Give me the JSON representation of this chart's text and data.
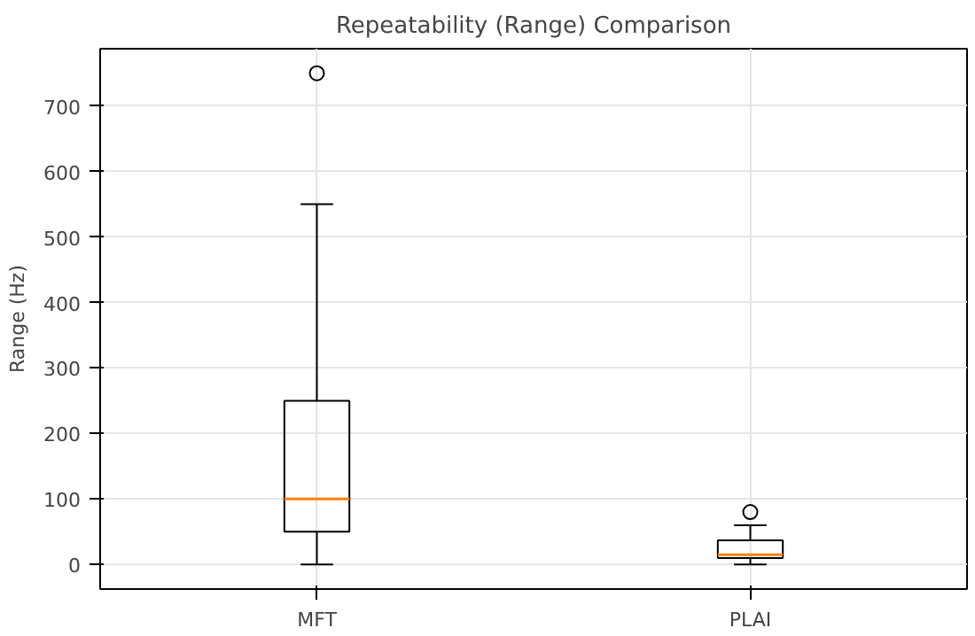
{
  "chart_data": {
    "type": "box",
    "title": "Repeatability (Range) Comparison",
    "ylabel": "Range (Hz)",
    "categories": [
      "MFT",
      "PLAI"
    ],
    "boxes": [
      {
        "low": 0,
        "q1": 50,
        "median": 100,
        "q3": 250,
        "high": 550,
        "outliers": [
          750
        ]
      },
      {
        "low": 0,
        "q1": 10,
        "median": 15,
        "q3": 37,
        "high": 60,
        "outliers": [
          80
        ]
      }
    ],
    "color": "#000000",
    "ylim": [
      -37.5,
      787.5
    ],
    "yticks": [
      0,
      100,
      200,
      300,
      400,
      500,
      600,
      700
    ],
    "grid": true
  }
}
